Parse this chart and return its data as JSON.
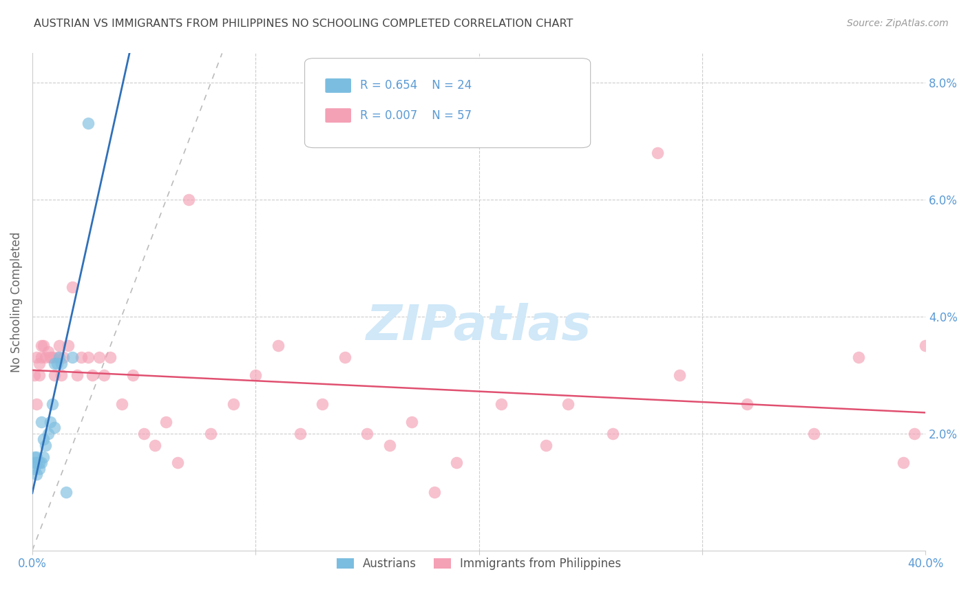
{
  "title": "AUSTRIAN VS IMMIGRANTS FROM PHILIPPINES NO SCHOOLING COMPLETED CORRELATION CHART",
  "source": "Source: ZipAtlas.com",
  "ylabel": "No Schooling Completed",
  "xlim": [
    0.0,
    0.4
  ],
  "ylim": [
    0.0,
    0.085
  ],
  "legend_blue_label": "Austrians",
  "legend_pink_label": "Immigrants from Philippines",
  "legend_blue_R": "R = 0.654",
  "legend_blue_N": "N = 24",
  "legend_pink_R": "R = 0.007",
  "legend_pink_N": "N = 57",
  "blue_color": "#7bbde0",
  "pink_color": "#f4a0b5",
  "blue_line_color": "#3070b8",
  "pink_line_color": "#e05070",
  "diag_line_color": "#bbbbbb",
  "grid_color": "#cccccc",
  "title_color": "#444444",
  "tick_color": "#5b9bd5",
  "watermark_color": "#d0e8f8",
  "austrians_x": [
    0.001,
    0.001,
    0.001,
    0.002,
    0.002,
    0.002,
    0.003,
    0.003,
    0.004,
    0.004,
    0.005,
    0.005,
    0.006,
    0.007,
    0.008,
    0.009,
    0.01,
    0.01,
    0.011,
    0.012,
    0.013,
    0.015,
    0.018,
    0.025
  ],
  "austrians_y": [
    0.014,
    0.015,
    0.016,
    0.013,
    0.015,
    0.016,
    0.014,
    0.015,
    0.015,
    0.022,
    0.016,
    0.019,
    0.018,
    0.02,
    0.022,
    0.025,
    0.021,
    0.032,
    0.032,
    0.033,
    0.032,
    0.01,
    0.033,
    0.073
  ],
  "philippines_x": [
    0.001,
    0.002,
    0.002,
    0.003,
    0.003,
    0.004,
    0.004,
    0.005,
    0.006,
    0.007,
    0.008,
    0.009,
    0.01,
    0.011,
    0.012,
    0.013,
    0.014,
    0.016,
    0.018,
    0.02,
    0.022,
    0.025,
    0.027,
    0.03,
    0.032,
    0.035,
    0.04,
    0.045,
    0.05,
    0.055,
    0.06,
    0.065,
    0.07,
    0.08,
    0.09,
    0.1,
    0.11,
    0.13,
    0.15,
    0.17,
    0.19,
    0.21,
    0.23,
    0.26,
    0.29,
    0.32,
    0.35,
    0.37,
    0.39,
    0.395,
    0.4,
    0.12,
    0.14,
    0.16,
    0.18,
    0.24,
    0.28
  ],
  "philippines_y": [
    0.03,
    0.025,
    0.033,
    0.03,
    0.032,
    0.033,
    0.035,
    0.035,
    0.033,
    0.034,
    0.033,
    0.033,
    0.03,
    0.033,
    0.035,
    0.03,
    0.033,
    0.035,
    0.045,
    0.03,
    0.033,
    0.033,
    0.03,
    0.033,
    0.03,
    0.033,
    0.025,
    0.03,
    0.02,
    0.018,
    0.022,
    0.015,
    0.06,
    0.02,
    0.025,
    0.03,
    0.035,
    0.025,
    0.02,
    0.022,
    0.015,
    0.025,
    0.018,
    0.02,
    0.03,
    0.025,
    0.02,
    0.033,
    0.015,
    0.02,
    0.035,
    0.02,
    0.033,
    0.018,
    0.01,
    0.025,
    0.068
  ]
}
